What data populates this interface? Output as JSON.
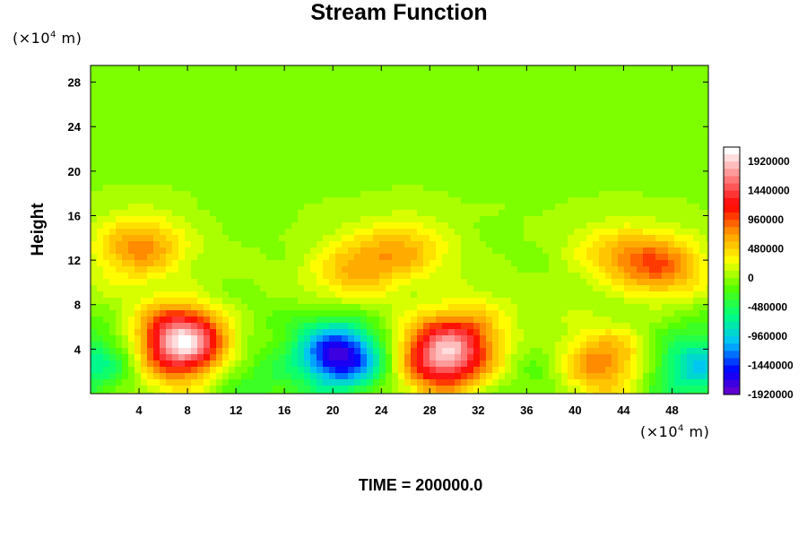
{
  "chart_data": {
    "type": "heatmap",
    "title": "Stream Function",
    "ylabel": "Height",
    "xlabel": "",
    "x_unit": {
      "prefix": "(×10",
      "exp": "4",
      "suffix": " m)"
    },
    "y_unit": {
      "prefix": "(×10",
      "exp": "4",
      "suffix": " m)"
    },
    "xlim": [
      0,
      51
    ],
    "ylim": [
      0,
      29.5
    ],
    "x_ticks": [
      4,
      8,
      12,
      16,
      20,
      24,
      28,
      32,
      36,
      40,
      44,
      48
    ],
    "y_ticks": [
      4,
      8,
      12,
      16,
      20,
      24,
      28
    ],
    "x_tick_labels": [
      "4",
      "8",
      "12",
      "16",
      "20",
      "24",
      "28",
      "32",
      "36",
      "40",
      "44",
      "48"
    ],
    "y_tick_labels": [
      "4",
      "8",
      "12",
      "16",
      "20",
      "24",
      "28"
    ],
    "colorbar": {
      "range": [
        -1920000,
        2160000
      ],
      "ticks": [
        1920000,
        1440000,
        960000,
        480000,
        0,
        -480000,
        -960000,
        -1440000,
        -1920000
      ],
      "tick_labels": [
        "1920000",
        "1440000",
        "960000",
        "480000",
        "0",
        "-480000",
        "-960000",
        "-1440000",
        "-1920000"
      ],
      "colors": [
        "#7f00bf",
        "#0000ff",
        "#00bfff",
        "#00ff7f",
        "#55ff00",
        "#ffff00",
        "#ff9900",
        "#ff0000",
        "#ff8080",
        "#ffffff"
      ]
    },
    "background_value": 50000,
    "features": [
      {
        "x": 7.5,
        "y": 4.5,
        "value": 2100000
      },
      {
        "x": 20.5,
        "y": 3.3,
        "value": -1700000
      },
      {
        "x": 29,
        "y": 3.0,
        "value": 1600000
      },
      {
        "x": 31,
        "y": 5.5,
        "value": 700000
      },
      {
        "x": 42,
        "y": 2.5,
        "value": 950000
      },
      {
        "x": 47,
        "y": 11.5,
        "value": 850000
      },
      {
        "x": 43,
        "y": 12.5,
        "value": 400000
      },
      {
        "x": 4,
        "y": 13,
        "value": 800000
      },
      {
        "x": 22,
        "y": 11.2,
        "value": 650000
      },
      {
        "x": 50,
        "y": 2.5,
        "value": -1000000
      },
      {
        "x": 0,
        "y": 2.5,
        "value": -700000
      },
      {
        "x": 37.5,
        "y": 1,
        "value": -300000
      },
      {
        "x": 14,
        "y": 2.0,
        "value": -300000
      },
      {
        "x": 26.2,
        "y": 13.0,
        "value": 500000
      }
    ]
  },
  "time_label": "TIME = 200000.0"
}
